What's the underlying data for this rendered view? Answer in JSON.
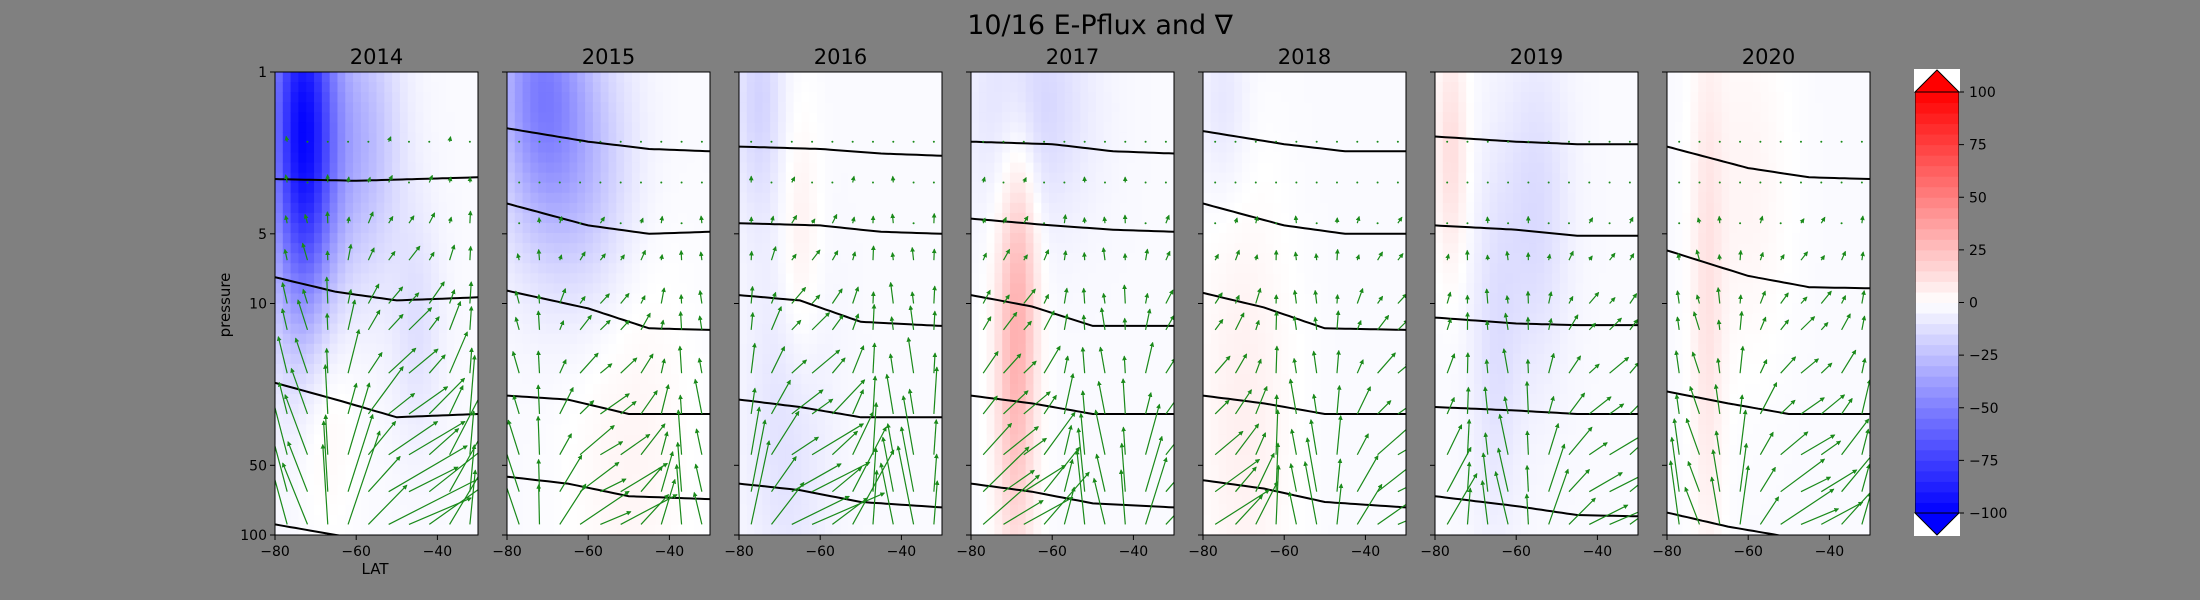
{
  "chart_data": {
    "type": "contour-quiver-panels",
    "title": "10/16 E-Pflux and ∇",
    "xlabel": "LAT",
    "ylabel": "pressure",
    "x_range": [
      -80,
      -30
    ],
    "x_ticks": [
      -80,
      -60,
      -40
    ],
    "x_tick_labels": [
      "−80",
      "−60",
      "−40"
    ],
    "y_scale": "log",
    "y_range": [
      100,
      1
    ],
    "y_ticks": [
      1,
      5,
      10,
      50,
      100
    ],
    "y_tick_labels": [
      "1",
      "5",
      "10",
      "50",
      "100"
    ],
    "colorbar": {
      "range": [
        -100,
        100
      ],
      "ticks": [
        -100,
        -75,
        -50,
        -25,
        0,
        25,
        50,
        75,
        100
      ],
      "tick_labels": [
        "−100",
        "−75",
        "−50",
        "−25",
        "0",
        "25",
        "50",
        "75",
        "100"
      ],
      "cmap": "bwr",
      "extend": "both"
    },
    "panels": [
      {
        "title": "2014",
        "blobs": [
          {
            "lat": -74,
            "p": 1.3,
            "rl": 9,
            "rp": 0.8,
            "v": -60
          },
          {
            "lat": -72,
            "p": 4,
            "rl": 8,
            "rp": 0.9,
            "v": -45
          },
          {
            "lat": -58,
            "p": 2,
            "rl": 9,
            "rp": 0.6,
            "v": -25
          },
          {
            "lat": -70,
            "p": 20,
            "rl": 8,
            "rp": 0.6,
            "v": 20
          },
          {
            "lat": -45,
            "p": 12,
            "rl": 6,
            "rp": 0.5,
            "v": -10
          }
        ],
        "contours": [
          [
            [
              -80,
              2.9
            ],
            [
              -60,
              2.95
            ],
            [
              -45,
              2.9
            ],
            [
              -30,
              2.85
            ]
          ],
          [
            [
              -80,
              7.7
            ],
            [
              -65,
              8.9
            ],
            [
              -50,
              9.7
            ],
            [
              -30,
              9.4
            ]
          ],
          [
            [
              -80,
              22
            ],
            [
              -65,
              26
            ],
            [
              -50,
              31
            ],
            [
              -30,
              30
            ]
          ],
          [
            [
              -80,
              90
            ],
            [
              -65,
              100
            ],
            [
              -50,
              110
            ],
            [
              -30,
              110
            ]
          ]
        ],
        "arrow_strength": 1.0
      },
      {
        "title": "2015",
        "blobs": [
          {
            "lat": -72,
            "p": 1.2,
            "rl": 11,
            "rp": 0.6,
            "v": -45
          },
          {
            "lat": -60,
            "p": 2.6,
            "rl": 12,
            "rp": 0.6,
            "v": -20
          },
          {
            "lat": -50,
            "p": 40,
            "rl": 15,
            "rp": 1.0,
            "v": 6
          }
        ],
        "contours": [
          [
            [
              -80,
              1.75
            ],
            [
              -60,
              2.0
            ],
            [
              -45,
              2.15
            ],
            [
              -30,
              2.2
            ]
          ],
          [
            [
              -80,
              3.7
            ],
            [
              -60,
              4.6
            ],
            [
              -45,
              5.0
            ],
            [
              -30,
              4.9
            ]
          ],
          [
            [
              -80,
              8.8
            ],
            [
              -60,
              10.5
            ],
            [
              -45,
              12.8
            ],
            [
              -30,
              13
            ]
          ],
          [
            [
              -80,
              25
            ],
            [
              -65,
              26
            ],
            [
              -50,
              30
            ],
            [
              -30,
              30
            ]
          ],
          [
            [
              -80,
              56
            ],
            [
              -65,
              60
            ],
            [
              -50,
              68
            ],
            [
              -30,
              70
            ]
          ]
        ],
        "arrow_strength": 0.6
      },
      {
        "title": "2016",
        "blobs": [
          {
            "lat": -75,
            "p": 1.3,
            "rl": 6,
            "rp": 0.5,
            "v": -15
          },
          {
            "lat": -65,
            "p": 6,
            "rl": 5,
            "rp": 0.6,
            "v": 10
          },
          {
            "lat": -68,
            "p": 35,
            "rl": 10,
            "rp": 0.8,
            "v": -10
          }
        ],
        "contours": [
          [
            [
              -80,
              2.1
            ],
            [
              -60,
              2.15
            ],
            [
              -45,
              2.25
            ],
            [
              -30,
              2.3
            ]
          ],
          [
            [
              -80,
              4.5
            ],
            [
              -60,
              4.6
            ],
            [
              -45,
              4.9
            ],
            [
              -30,
              5.0
            ]
          ],
          [
            [
              -80,
              9.2
            ],
            [
              -65,
              9.7
            ],
            [
              -50,
              12.0
            ],
            [
              -30,
              12.5
            ]
          ],
          [
            [
              -80,
              26
            ],
            [
              -65,
              28
            ],
            [
              -50,
              31
            ],
            [
              -30,
              31
            ]
          ],
          [
            [
              -80,
              60
            ],
            [
              -65,
              64
            ],
            [
              -50,
              72
            ],
            [
              -30,
              76
            ]
          ]
        ],
        "arrow_strength": 0.8
      },
      {
        "title": "2017",
        "blobs": [
          {
            "lat": -69,
            "p": 18,
            "rl": 5,
            "rp": 0.9,
            "v": 30
          },
          {
            "lat": -65,
            "p": 1.4,
            "rl": 14,
            "rp": 0.5,
            "v": -15
          },
          {
            "lat": -67,
            "p": 6,
            "rl": 4,
            "rp": 0.5,
            "v": 8
          }
        ],
        "contours": [
          [
            [
              -80,
              2.0
            ],
            [
              -60,
              2.05
            ],
            [
              -45,
              2.2
            ],
            [
              -30,
              2.25
            ]
          ],
          [
            [
              -80,
              4.3
            ],
            [
              -60,
              4.6
            ],
            [
              -45,
              4.8
            ],
            [
              -30,
              4.9
            ]
          ],
          [
            [
              -80,
              9.2
            ],
            [
              -65,
              10.3
            ],
            [
              -50,
              12.5
            ],
            [
              -30,
              12.5
            ]
          ],
          [
            [
              -80,
              25
            ],
            [
              -65,
              27
            ],
            [
              -50,
              30
            ],
            [
              -30,
              30
            ]
          ],
          [
            [
              -80,
              60
            ],
            [
              -65,
              65
            ],
            [
              -50,
              73
            ],
            [
              -30,
              76
            ]
          ]
        ],
        "arrow_strength": 0.7
      },
      {
        "title": "2018",
        "blobs": [
          {
            "lat": -70,
            "p": 30,
            "rl": 12,
            "rp": 1.0,
            "v": 8
          },
          {
            "lat": -75,
            "p": 1.4,
            "rl": 6,
            "rp": 0.4,
            "v": -8
          }
        ],
        "contours": [
          [
            [
              -80,
              1.8
            ],
            [
              -60,
              2.05
            ],
            [
              -45,
              2.2
            ],
            [
              -30,
              2.2
            ]
          ],
          [
            [
              -80,
              3.7
            ],
            [
              -60,
              4.6
            ],
            [
              -45,
              5.0
            ],
            [
              -30,
              5.0
            ]
          ],
          [
            [
              -80,
              9.0
            ],
            [
              -65,
              10.4
            ],
            [
              -50,
              12.8
            ],
            [
              -30,
              13
            ]
          ],
          [
            [
              -80,
              25
            ],
            [
              -65,
              27
            ],
            [
              -50,
              30
            ],
            [
              -30,
              30
            ]
          ],
          [
            [
              -80,
              58
            ],
            [
              -65,
              63
            ],
            [
              -50,
              72
            ],
            [
              -30,
              76
            ]
          ]
        ],
        "arrow_strength": 0.6
      },
      {
        "title": "2019",
        "blobs": [
          {
            "lat": -76,
            "p": 2.2,
            "rl": 4,
            "rp": 0.5,
            "v": 15
          },
          {
            "lat": -55,
            "p": 4,
            "rl": 8,
            "rp": 0.7,
            "v": -12
          },
          {
            "lat": -65,
            "p": 15,
            "rl": 6,
            "rp": 0.8,
            "v": -10
          }
        ],
        "contours": [
          [
            [
              -80,
              1.9
            ],
            [
              -60,
              2.0
            ],
            [
              -45,
              2.05
            ],
            [
              -30,
              2.05
            ]
          ],
          [
            [
              -80,
              4.6
            ],
            [
              -60,
              4.8
            ],
            [
              -45,
              5.1
            ],
            [
              -30,
              5.1
            ]
          ],
          [
            [
              -80,
              11.5
            ],
            [
              -60,
              12.2
            ],
            [
              -45,
              12.4
            ],
            [
              -30,
              12.4
            ]
          ],
          [
            [
              -80,
              28
            ],
            [
              -60,
              29
            ],
            [
              -45,
              30
            ],
            [
              -30,
              30
            ]
          ],
          [
            [
              -80,
              68
            ],
            [
              -60,
              75
            ],
            [
              -45,
              82
            ],
            [
              -30,
              83
            ]
          ]
        ],
        "arrow_strength": 0.55
      },
      {
        "title": "2020",
        "blobs": [
          {
            "lat": -70,
            "p": 10,
            "rl": 4,
            "rp": 1.2,
            "v": 12
          },
          {
            "lat": -60,
            "p": 3,
            "rl": 10,
            "rp": 0.8,
            "v": 6
          }
        ],
        "contours": [
          [
            [
              -80,
              2.1
            ],
            [
              -60,
              2.6
            ],
            [
              -45,
              2.85
            ],
            [
              -30,
              2.9
            ]
          ],
          [
            [
              -80,
              5.9
            ],
            [
              -60,
              7.6
            ],
            [
              -45,
              8.5
            ],
            [
              -30,
              8.6
            ]
          ],
          [
            [
              -80,
              24
            ],
            [
              -65,
              27
            ],
            [
              -50,
              30
            ],
            [
              -30,
              30
            ]
          ],
          [
            [
              -80,
              80
            ],
            [
              -65,
              92
            ],
            [
              -50,
              102
            ],
            [
              -30,
              104
            ]
          ]
        ],
        "arrow_strength": 0.6
      }
    ]
  }
}
